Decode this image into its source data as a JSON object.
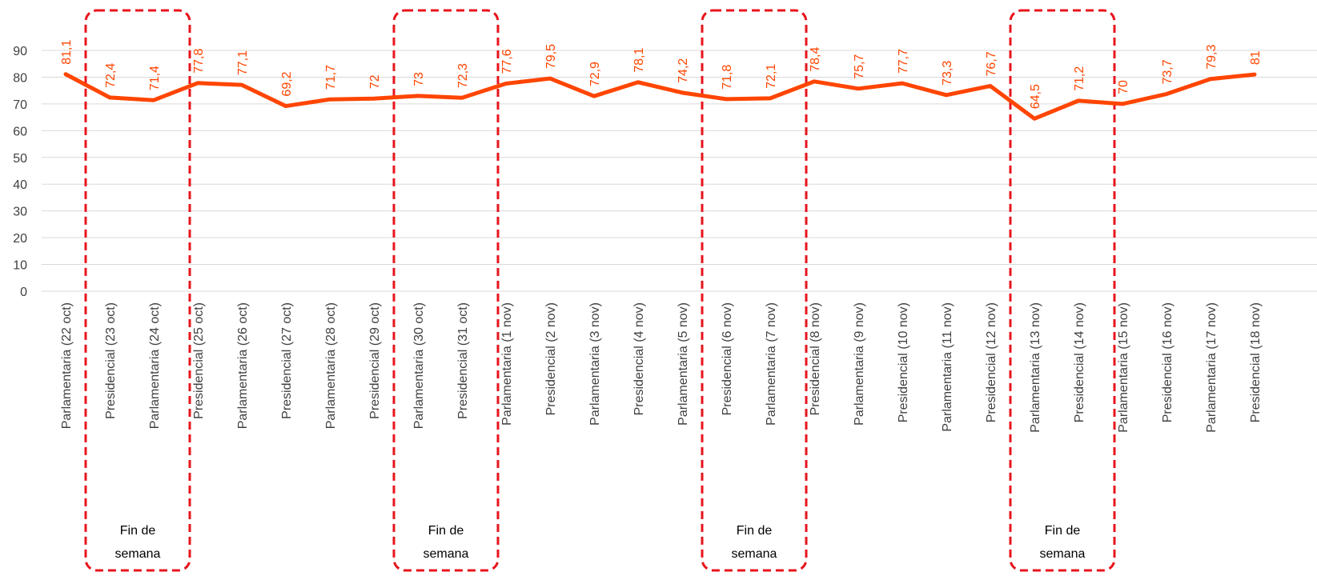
{
  "chart_data": {
    "type": "line",
    "categories": [
      "Parlamentaria (22 oct)",
      "Presidencial (23 oct)",
      "Parlamentaria (24 oct)",
      "Presidencial (25 oct)",
      "Parlamentaria (26 oct)",
      "Presidencial (27 oct)",
      "Parlamentaria (28 oct)",
      "Presidencial (29 oct)",
      "Parlamentaria (30 oct)",
      "Presidencial (31 oct)",
      "Parlamentaria (1 nov)",
      "Presidencial (2 nov)",
      "Parlamentaria (3 nov)",
      "Presidencial (4 nov)",
      "Parlamentaria (5 nov)",
      "Presidencial (6 nov)",
      "Parlamentaria (7 nov)",
      "Presidencial (8 nov)",
      "Parlamentaria (9 nov)",
      "Presidencial (10 nov)",
      "Parlamentaria (11 nov)",
      "Presidencial (12 nov)",
      "Parlamentaria (13 nov)",
      "Presidencial (14 nov)",
      "Parlamentaria (15 nov)",
      "Presidencial (16 nov)",
      "Parlamentaria (17 nov)",
      "Presidencial (18 nov)"
    ],
    "values": [
      81.1,
      72.4,
      71.4,
      77.8,
      77.1,
      69.2,
      71.7,
      72,
      73,
      72.3,
      77.6,
      79.5,
      72.9,
      78.1,
      74.2,
      71.8,
      72.1,
      78.4,
      75.7,
      77.7,
      73.3,
      76.7,
      64.5,
      71.2,
      70,
      73.7,
      79.3,
      81
    ],
    "data_labels": [
      "81,1",
      "72,4",
      "71,4",
      "77,8",
      "77,1",
      "69,2",
      "71,7",
      "72",
      "73",
      "72,3",
      "77,6",
      "79,5",
      "72,9",
      "78,1",
      "74,2",
      "71,8",
      "72,1",
      "78,4",
      "75,7",
      "77,7",
      "73,3",
      "76,7",
      "64,5",
      "71,2",
      "70",
      "73,7",
      "79,3",
      "81"
    ],
    "ylim": [
      0,
      90
    ],
    "yticks": [
      0,
      10,
      20,
      30,
      40,
      50,
      60,
      70,
      80,
      90
    ],
    "grid": true,
    "line_color": "#FF4500",
    "label_color": "#FF4500",
    "annotations": [
      {
        "text_line1": "Fin de",
        "text_line2": "semana",
        "from_index": 1,
        "to_index": 2
      },
      {
        "text_line1": "Fin de",
        "text_line2": "semana",
        "from_index": 8,
        "to_index": 9
      },
      {
        "text_line1": "Fin de",
        "text_line2": "semana",
        "from_index": 15,
        "to_index": 16
      },
      {
        "text_line1": "Fin de",
        "text_line2": "semana",
        "from_index": 22,
        "to_index": 23
      }
    ],
    "annotation_color": "#E8141C"
  }
}
